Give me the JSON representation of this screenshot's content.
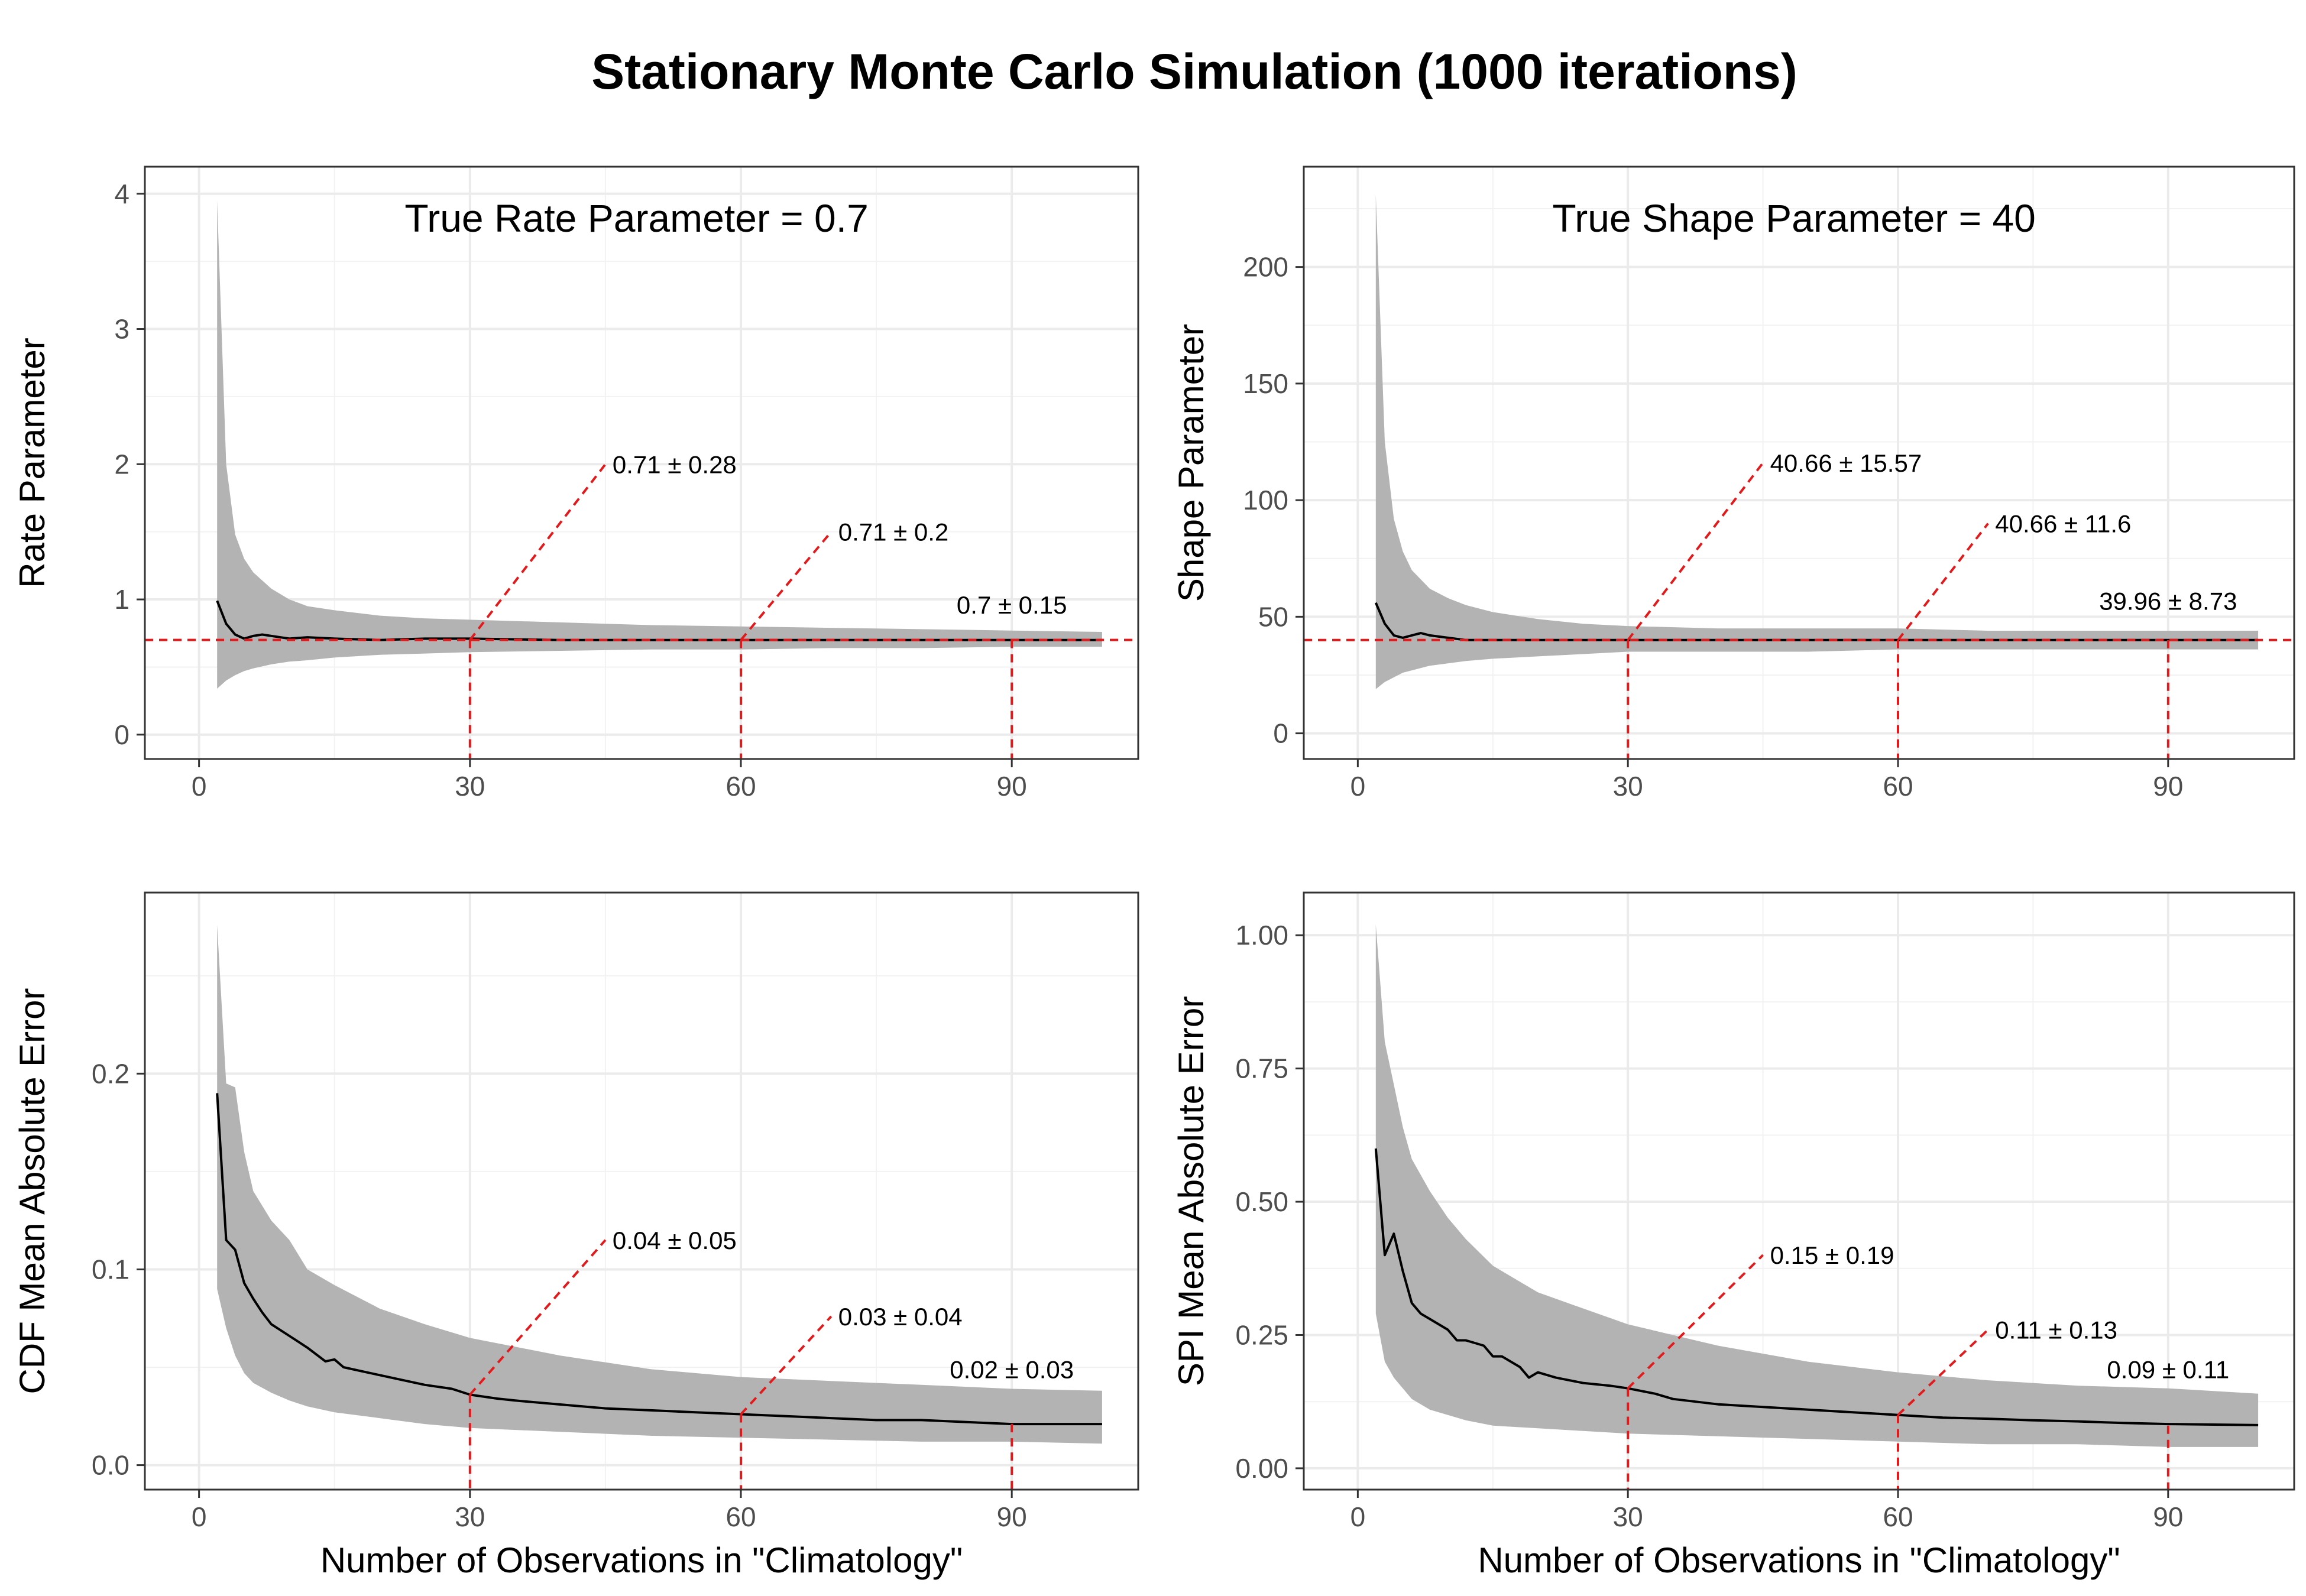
{
  "figure": {
    "title": "Stationary Monte Carlo Simulation (1000 iterations)"
  },
  "chart_data": [
    {
      "type": "line",
      "id": "rate",
      "annotation": "True Rate Parameter = 0.7",
      "ylabel": "Rate Parameter",
      "xlabel": "",
      "xlim": [
        -6,
        104
      ],
      "ylim": [
        -0.18,
        4.2
      ],
      "xticks": [
        0,
        30,
        60,
        90
      ],
      "yticks": [
        0,
        1,
        2,
        3,
        4
      ],
      "ytick_labels": [
        "0",
        "1",
        "2",
        "3",
        "4"
      ],
      "reference_y": 0.7,
      "band": {
        "x": [
          2,
          3,
          4,
          5,
          6,
          8,
          10,
          12,
          15,
          20,
          25,
          30,
          40,
          50,
          60,
          70,
          80,
          90,
          100
        ],
        "lower": [
          0.34,
          0.4,
          0.44,
          0.47,
          0.49,
          0.52,
          0.54,
          0.55,
          0.57,
          0.59,
          0.6,
          0.61,
          0.62,
          0.63,
          0.63,
          0.64,
          0.64,
          0.65,
          0.65
        ],
        "upper": [
          3.95,
          2.0,
          1.48,
          1.3,
          1.2,
          1.08,
          1.0,
          0.95,
          0.92,
          0.88,
          0.86,
          0.85,
          0.83,
          0.81,
          0.8,
          0.79,
          0.78,
          0.77,
          0.76
        ]
      },
      "mean": {
        "x": [
          2,
          3,
          4,
          5,
          6,
          7,
          8,
          10,
          12,
          15,
          20,
          25,
          30,
          40,
          50,
          60,
          70,
          80,
          90,
          100
        ],
        "y": [
          0.99,
          0.82,
          0.74,
          0.71,
          0.73,
          0.74,
          0.73,
          0.71,
          0.72,
          0.71,
          0.7,
          0.71,
          0.71,
          0.7,
          0.7,
          0.7,
          0.7,
          0.7,
          0.7,
          0.7
        ]
      },
      "markers": [
        {
          "x": 30,
          "y": 0.7,
          "label_x": 45,
          "label_y": 2.0,
          "text": "0.71 ± 0.28",
          "anchor": "start"
        },
        {
          "x": 60,
          "y": 0.7,
          "label_x": 70,
          "label_y": 1.5,
          "text": "0.71 ± 0.2",
          "anchor": "start"
        },
        {
          "x": 90,
          "y": 0.7,
          "label_x": 90,
          "label_y": 0.86,
          "text": "0.7 ± 0.15",
          "anchor": "middle"
        }
      ]
    },
    {
      "type": "line",
      "id": "shape",
      "annotation": "True Shape Parameter = 40",
      "ylabel": "Shape Parameter",
      "xlabel": "",
      "xlim": [
        -6,
        104
      ],
      "ylim": [
        -11,
        243
      ],
      "xticks": [
        0,
        30,
        60,
        90
      ],
      "yticks": [
        0,
        50,
        100,
        150,
        200
      ],
      "ytick_labels": [
        "0",
        "50",
        "100",
        "150",
        "200"
      ],
      "reference_y": 40,
      "band": {
        "x": [
          2,
          3,
          4,
          5,
          6,
          8,
          10,
          12,
          15,
          20,
          25,
          30,
          40,
          50,
          60,
          70,
          80,
          90,
          100
        ],
        "lower": [
          19,
          22,
          24,
          26,
          27,
          29,
          30,
          31,
          32,
          33,
          34,
          35,
          35,
          35,
          36,
          36,
          36,
          36,
          36
        ],
        "upper": [
          231,
          125,
          92,
          78,
          70,
          62,
          58,
          55,
          52,
          49,
          47,
          46,
          45,
          45,
          45,
          44,
          44,
          44,
          44
        ]
      },
      "mean": {
        "x": [
          2,
          3,
          4,
          5,
          6,
          7,
          8,
          10,
          12,
          15,
          20,
          25,
          30,
          40,
          50,
          60,
          70,
          80,
          90,
          100
        ],
        "y": [
          56,
          47,
          42,
          41,
          42,
          43,
          42,
          41,
          40,
          40,
          40,
          40,
          40,
          40,
          40,
          40,
          40,
          40,
          40,
          40
        ]
      },
      "markers": [
        {
          "x": 30,
          "y": 40,
          "label_x": 45,
          "label_y": 116,
          "text": "40.66 ± 15.57",
          "anchor": "start"
        },
        {
          "x": 60,
          "y": 40,
          "label_x": 70,
          "label_y": 90,
          "text": "40.66 ± 11.6",
          "anchor": "start"
        },
        {
          "x": 90,
          "y": 40,
          "label_x": 90,
          "label_y": 51,
          "text": "39.96 ± 8.73",
          "anchor": "middle"
        }
      ]
    },
    {
      "type": "line",
      "id": "cdf",
      "annotation": "",
      "ylabel": "CDF Mean Absolute Error",
      "xlabel": "Number of Observations in \"Climatology\"",
      "xlim": [
        -6,
        104
      ],
      "ylim": [
        -0.0125,
        0.2925
      ],
      "xticks": [
        0,
        30,
        60,
        90
      ],
      "yticks": [
        0.0,
        0.1,
        0.2
      ],
      "ytick_labels": [
        "0.0",
        "0.1",
        "0.2"
      ],
      "reference_y": null,
      "band": {
        "x": [
          2,
          3,
          4,
          5,
          6,
          8,
          10,
          12,
          15,
          20,
          25,
          30,
          40,
          50,
          60,
          70,
          80,
          90,
          100
        ],
        "lower": [
          0.09,
          0.07,
          0.056,
          0.047,
          0.042,
          0.037,
          0.033,
          0.03,
          0.027,
          0.024,
          0.021,
          0.019,
          0.017,
          0.015,
          0.014,
          0.013,
          0.012,
          0.012,
          0.011
        ],
        "upper": [
          0.276,
          0.195,
          0.193,
          0.16,
          0.14,
          0.125,
          0.115,
          0.1,
          0.092,
          0.08,
          0.072,
          0.065,
          0.056,
          0.049,
          0.045,
          0.043,
          0.041,
          0.039,
          0.038
        ]
      },
      "mean": {
        "x": [
          2,
          3,
          4,
          5,
          6,
          7,
          8,
          10,
          12,
          14,
          15,
          16,
          18,
          20,
          22,
          25,
          28,
          30,
          33,
          35,
          40,
          45,
          50,
          55,
          60,
          65,
          70,
          75,
          80,
          85,
          90,
          95,
          100
        ],
        "y": [
          0.19,
          0.115,
          0.11,
          0.093,
          0.085,
          0.078,
          0.072,
          0.066,
          0.06,
          0.053,
          0.054,
          0.05,
          0.048,
          0.046,
          0.044,
          0.041,
          0.039,
          0.036,
          0.034,
          0.033,
          0.031,
          0.029,
          0.028,
          0.027,
          0.026,
          0.025,
          0.024,
          0.023,
          0.023,
          0.022,
          0.021,
          0.021,
          0.021
        ]
      },
      "markers": [
        {
          "x": 30,
          "y": 0.036,
          "label_x": 45,
          "label_y": 0.115,
          "text": "0.04 ± 0.05",
          "anchor": "start"
        },
        {
          "x": 60,
          "y": 0.026,
          "label_x": 70,
          "label_y": 0.076,
          "text": "0.03 ± 0.04",
          "anchor": "start"
        },
        {
          "x": 90,
          "y": 0.021,
          "label_x": 90,
          "label_y": 0.042,
          "text": "0.02 ± 0.03",
          "anchor": "middle"
        }
      ]
    },
    {
      "type": "line",
      "id": "spi",
      "annotation": "",
      "ylabel": "SPI Mean Absolute Error",
      "xlabel": "Number of Observations in \"Climatology\"",
      "xlim": [
        -6,
        104
      ],
      "ylim": [
        -0.04,
        1.08
      ],
      "xticks": [
        0,
        30,
        60,
        90
      ],
      "yticks": [
        0.0,
        0.25,
        0.5,
        0.75,
        1.0
      ],
      "ytick_labels": [
        "0.00",
        "0.25",
        "0.50",
        "0.75",
        "1.00"
      ],
      "reference_y": null,
      "band": {
        "x": [
          2,
          3,
          4,
          5,
          6,
          8,
          10,
          12,
          15,
          20,
          25,
          30,
          40,
          50,
          60,
          70,
          80,
          90,
          100
        ],
        "lower": [
          0.29,
          0.2,
          0.17,
          0.15,
          0.13,
          0.11,
          0.1,
          0.09,
          0.08,
          0.075,
          0.07,
          0.065,
          0.06,
          0.055,
          0.05,
          0.045,
          0.045,
          0.04,
          0.04
        ],
        "upper": [
          1.02,
          0.8,
          0.72,
          0.64,
          0.58,
          0.52,
          0.47,
          0.43,
          0.38,
          0.33,
          0.3,
          0.27,
          0.23,
          0.2,
          0.18,
          0.165,
          0.155,
          0.15,
          0.14
        ]
      },
      "mean": {
        "x": [
          2,
          3,
          4,
          5,
          6,
          7,
          8,
          10,
          11,
          12,
          14,
          15,
          16,
          18,
          19,
          20,
          22,
          25,
          28,
          30,
          33,
          35,
          40,
          45,
          50,
          55,
          60,
          65,
          70,
          75,
          80,
          85,
          90,
          95,
          100
        ],
        "y": [
          0.6,
          0.4,
          0.44,
          0.37,
          0.31,
          0.29,
          0.28,
          0.26,
          0.24,
          0.24,
          0.23,
          0.21,
          0.21,
          0.19,
          0.17,
          0.18,
          0.17,
          0.16,
          0.155,
          0.15,
          0.14,
          0.13,
          0.12,
          0.115,
          0.11,
          0.105,
          0.1,
          0.095,
          0.093,
          0.09,
          0.088,
          0.085,
          0.083,
          0.082,
          0.081
        ]
      },
      "markers": [
        {
          "x": 30,
          "y": 0.15,
          "label_x": 45,
          "label_y": 0.4,
          "text": "0.15 ± 0.19",
          "anchor": "start"
        },
        {
          "x": 60,
          "y": 0.1,
          "label_x": 70,
          "label_y": 0.26,
          "text": "0.11 ± 0.13",
          "anchor": "start"
        },
        {
          "x": 90,
          "y": 0.08,
          "label_x": 90,
          "label_y": 0.16,
          "text": "0.09 ± 0.11",
          "anchor": "middle"
        }
      ]
    }
  ]
}
